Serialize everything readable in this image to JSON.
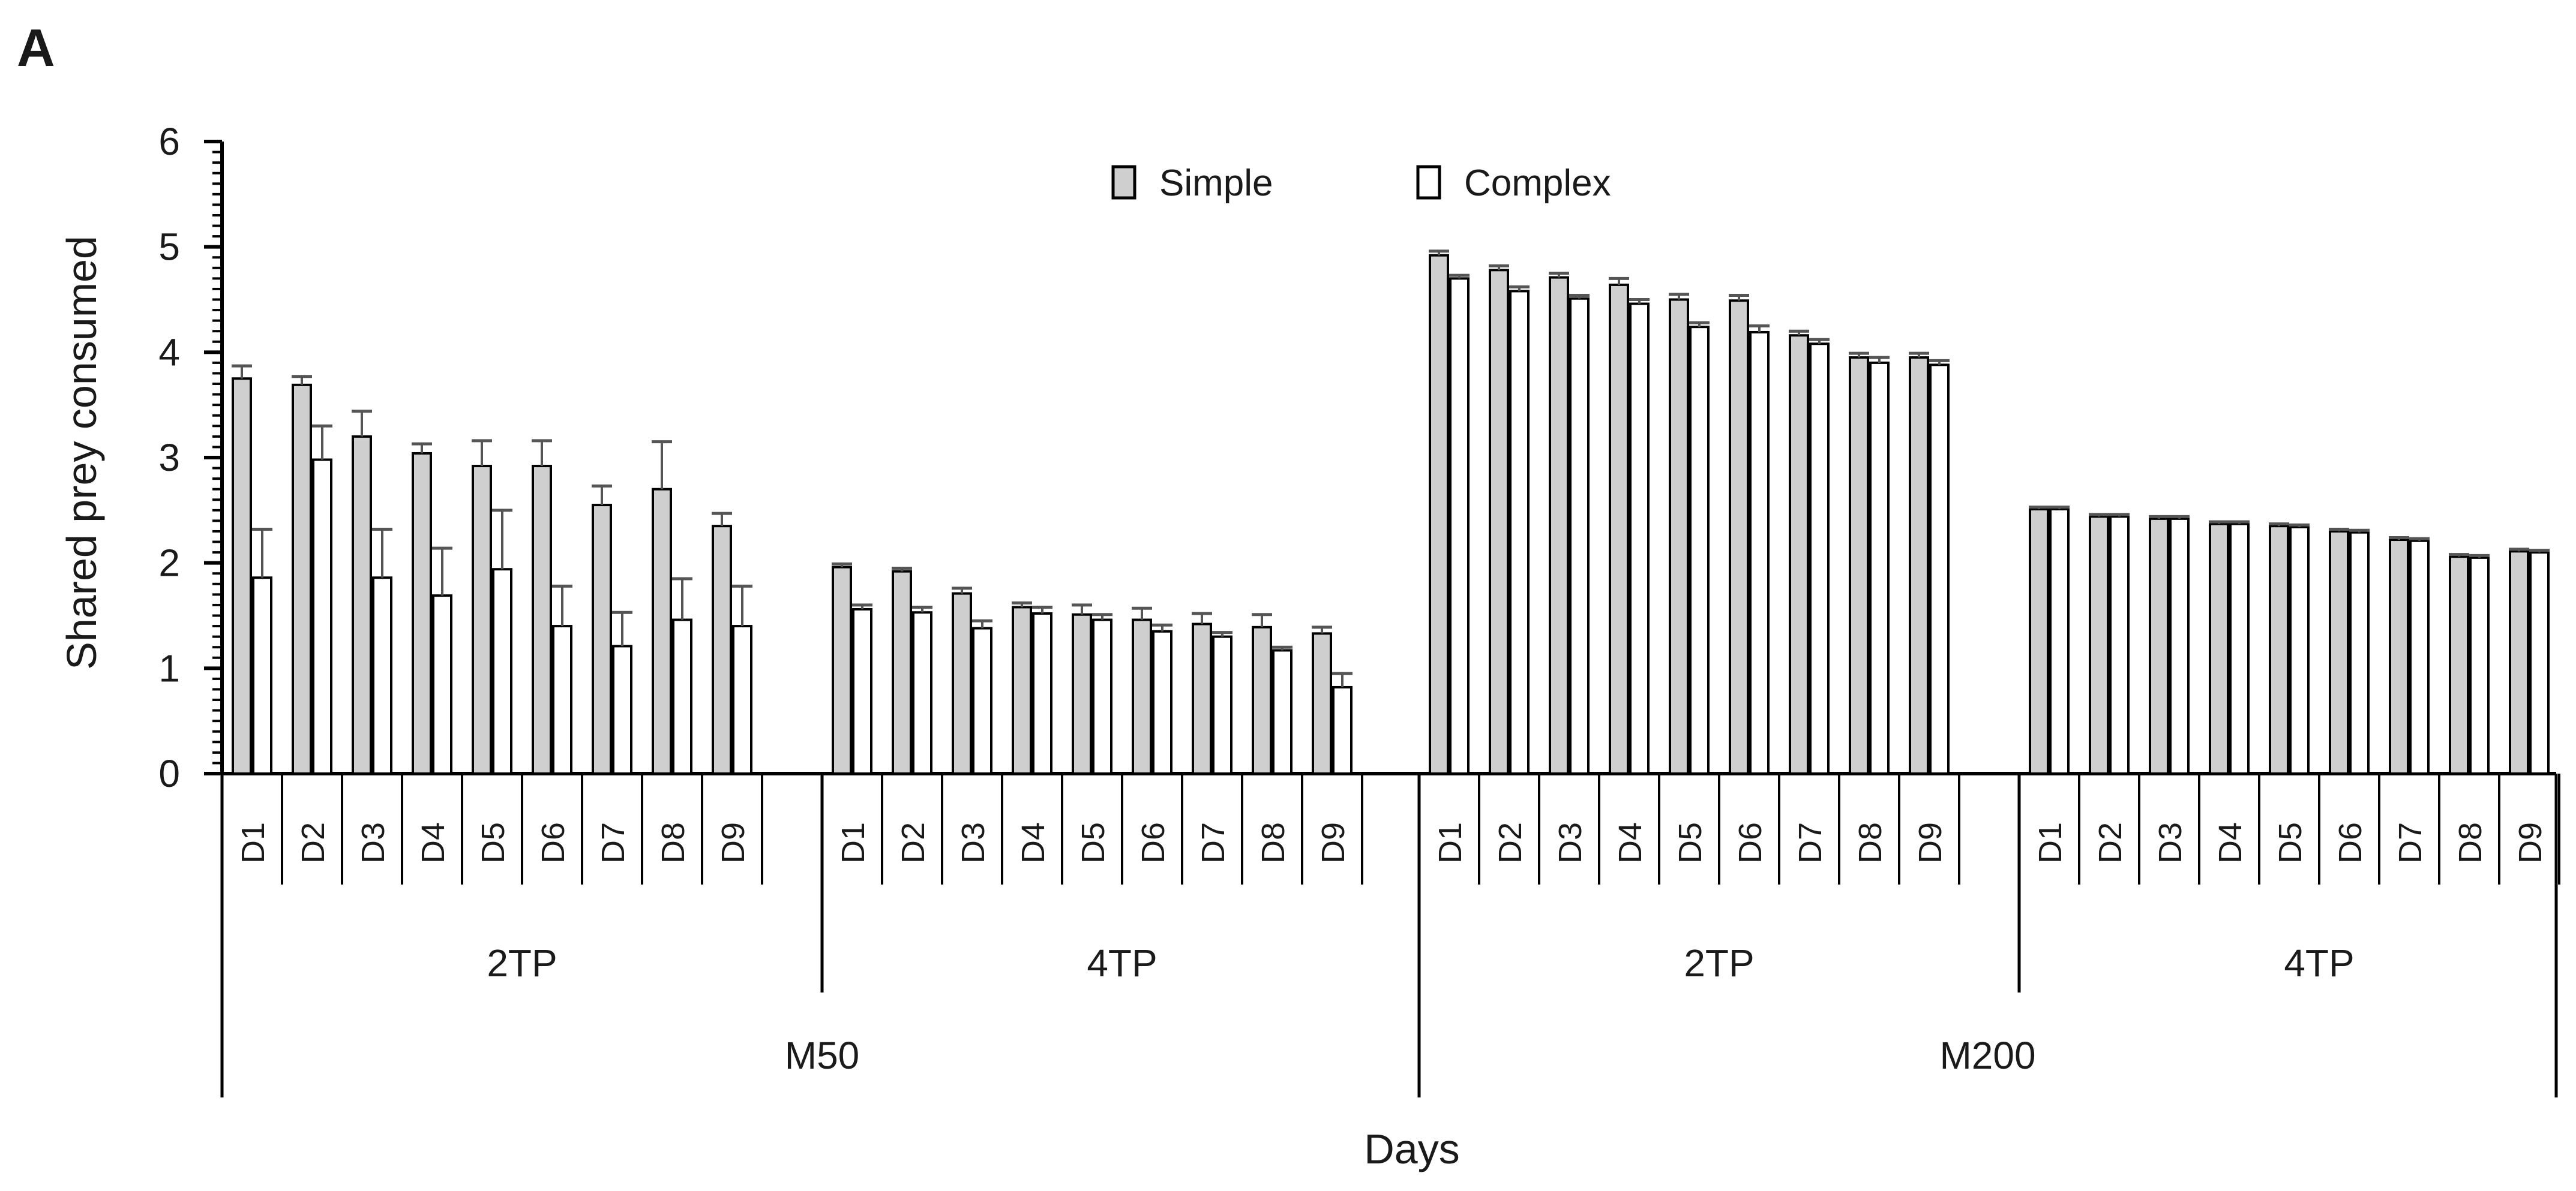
{
  "panel_label": "A",
  "chart_data": {
    "type": "bar",
    "title": "",
    "xlabel": "Days",
    "ylabel": "Shared prey consumed",
    "ylim": [
      0,
      6
    ],
    "yticks": [
      "0",
      "1",
      "2",
      "3",
      "4",
      "5",
      "6"
    ],
    "grid": false,
    "legend_position": "top-center",
    "series": [
      {
        "name": "Simple",
        "color": "#cfcfcf"
      },
      {
        "name": "Complex",
        "color": "#ffffff"
      }
    ],
    "groups": [
      {
        "model": "M50",
        "treatment": "2TP",
        "days": [
          "D1",
          "D2",
          "D3",
          "D4",
          "D5",
          "D6",
          "D7",
          "D8",
          "D9"
        ],
        "simple": [
          3.75,
          3.69,
          3.2,
          3.04,
          2.92,
          2.92,
          2.55,
          2.7,
          2.35
        ],
        "simple_err": [
          0.12,
          0.08,
          0.24,
          0.09,
          0.24,
          0.24,
          0.18,
          0.45,
          0.12
        ],
        "complex": [
          1.86,
          2.98,
          1.86,
          1.69,
          1.94,
          1.4,
          1.21,
          1.46,
          1.4
        ],
        "complex_err": [
          0.46,
          0.32,
          0.46,
          0.45,
          0.56,
          0.38,
          0.32,
          0.39,
          0.38
        ]
      },
      {
        "model": "M50",
        "treatment": "4TP",
        "days": [
          "D1",
          "D2",
          "D3",
          "D4",
          "D5",
          "D6",
          "D7",
          "D8",
          "D9"
        ],
        "simple": [
          1.96,
          1.92,
          1.71,
          1.58,
          1.51,
          1.46,
          1.42,
          1.39,
          1.33
        ],
        "simple_err": [
          0.03,
          0.03,
          0.05,
          0.04,
          0.09,
          0.11,
          0.1,
          0.12,
          0.06
        ],
        "complex": [
          1.56,
          1.53,
          1.38,
          1.52,
          1.46,
          1.35,
          1.3,
          1.17,
          0.82
        ],
        "complex_err": [
          0.04,
          0.05,
          0.07,
          0.06,
          0.05,
          0.06,
          0.04,
          0.03,
          0.13
        ]
      },
      {
        "model": "M200",
        "treatment": "2TP",
        "days": [
          "D1",
          "D2",
          "D3",
          "D4",
          "D5",
          "D6",
          "D7",
          "D8",
          "D9"
        ],
        "simple": [
          4.92,
          4.78,
          4.71,
          4.64,
          4.5,
          4.49,
          4.16,
          3.95,
          3.95
        ],
        "simple_err": [
          0.04,
          0.04,
          0.04,
          0.06,
          0.05,
          0.05,
          0.04,
          0.04,
          0.04
        ],
        "complex": [
          4.7,
          4.58,
          4.51,
          4.46,
          4.24,
          4.19,
          4.08,
          3.9,
          3.88
        ],
        "complex_err": [
          0.03,
          0.04,
          0.03,
          0.04,
          0.04,
          0.06,
          0.04,
          0.05,
          0.04
        ]
      },
      {
        "model": "M200",
        "treatment": "4TP",
        "days": [
          "D1",
          "D2",
          "D3",
          "D4",
          "D5",
          "D6",
          "D7",
          "D8",
          "D9"
        ],
        "simple": [
          2.51,
          2.44,
          2.42,
          2.37,
          2.35,
          2.3,
          2.22,
          2.06,
          2.11
        ],
        "simple_err": [
          0.02,
          0.02,
          0.02,
          0.02,
          0.02,
          0.02,
          0.02,
          0.02,
          0.02
        ],
        "complex": [
          2.51,
          2.44,
          2.42,
          2.37,
          2.34,
          2.29,
          2.21,
          2.05,
          2.1
        ],
        "complex_err": [
          0.02,
          0.02,
          0.02,
          0.02,
          0.02,
          0.02,
          0.02,
          0.02,
          0.02
        ]
      }
    ]
  }
}
